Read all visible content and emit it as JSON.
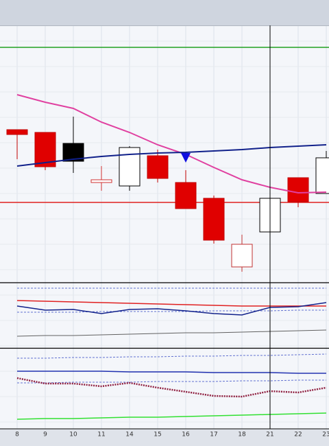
{
  "chart_data": {
    "type": "candlestick",
    "categories": [
      "8",
      "9",
      "10",
      "11",
      "14",
      "15",
      "16",
      "17",
      "18",
      "21",
      "22",
      "23"
    ],
    "crosshair_index": 9,
    "panels": [
      {
        "ylim": [
          0,
          373
        ],
        "candles": {
          "open": [
            221,
            217,
            201,
            144,
            139,
            183,
            144,
            121,
            21,
            72,
            151,
            128
          ],
          "high": [
            221,
            217,
            240,
            168,
            197,
            192,
            162,
            125,
            68,
            121,
            151,
            190
          ],
          "low": [
            178,
            162,
            158,
            132,
            132,
            144,
            106,
            55,
            14,
            72,
            108,
            128
          ],
          "close": [
            214,
            167,
            175,
            148,
            195,
            150,
            106,
            60,
            54,
            121,
            116,
            180
          ],
          "fill": [
            "#e00000",
            "#e00000",
            "#000000",
            "#ffffff",
            "#ffffff",
            "#e00000",
            "#e00000",
            "#e00000",
            "#ffffff",
            "#ffffff",
            "#e00000",
            "#ffffff"
          ],
          "stroke": [
            "#c00000",
            "#c00000",
            "#000000",
            "#d03030",
            "#000000",
            "#c00000",
            "#c00000",
            "#c00000",
            "#c03030",
            "#000000",
            "#c00000",
            "#000000"
          ]
        },
        "lines": [
          {
            "color": "#e040a0",
            "dash": "none",
            "width": 2,
            "values": [
              272,
              261,
              252,
              232,
              217,
              199,
              185,
              166,
              148,
              137,
              129,
              130
            ]
          },
          {
            "color": "#10208a",
            "dash": "none",
            "width": 2,
            "values": [
              168,
              173,
              178,
              182,
              185,
              187,
              188,
              190,
              192,
              195,
              197,
              199
            ]
          }
        ],
        "hlines": [
          {
            "value": 341,
            "color": "#20a020"
          },
          {
            "value": 115,
            "color": "#e02020"
          }
        ],
        "markers": {
          "color": "#1010e0",
          "values": [
            null,
            null,
            null,
            null,
            null,
            null,
            180,
            null,
            null,
            null,
            null,
            null
          ]
        }
      },
      {
        "ylim": [
          0,
          94
        ],
        "lines": [
          {
            "color": "#6070d0",
            "dash": "3,2",
            "width": 1,
            "values": [
              87,
              87,
              87,
              87,
              87,
              87,
              87,
              87,
              87,
              87,
              87,
              87
            ]
          },
          {
            "color": "#6070d0",
            "dash": "3,2",
            "width": 1,
            "values": [
              52,
              52,
              52,
              53,
              53,
              53,
              53,
              54,
              54,
              54,
              55,
              55
            ]
          },
          {
            "color": "#e02020",
            "dash": "none",
            "width": 1.5,
            "values": [
              69,
              68,
              67,
              66,
              65,
              64,
              63,
              62,
              61,
              61,
              61,
              61
            ]
          },
          {
            "color": "#10208a",
            "dash": "none",
            "width": 1.5,
            "values": [
              61,
              55,
              56,
              50,
              56,
              57,
              54,
              50,
              48,
              59,
              60,
              66
            ]
          },
          {
            "color": "#606060",
            "dash": "none",
            "width": 1,
            "values": [
              17,
              18,
              18,
              19,
              20,
              21,
              22,
              22,
              23,
              24,
              25,
              26
            ]
          }
        ]
      },
      {
        "ylim": [
          0,
          117
        ],
        "lines": [
          {
            "color": "#6070d0",
            "dash": "3,2",
            "width": 1,
            "values": [
              103,
              103,
              104,
              104,
              105,
              105,
              106,
              106,
              107,
              107,
              108,
              109
            ]
          },
          {
            "color": "#2030b0",
            "dash": "none",
            "width": 1.5,
            "values": [
              84,
              84,
              84,
              84,
              83,
              83,
              83,
              82,
              82,
              82,
              81,
              81
            ]
          },
          {
            "color": "#6070d0",
            "dash": "3,2",
            "width": 1,
            "values": [
              67,
              67,
              68,
              68,
              68,
              69,
              69,
              69,
              70,
              70,
              71,
              71
            ]
          },
          {
            "color": "#902040",
            "dash": "2,1.5",
            "width": 2.5,
            "values": [
              74,
              66,
              66,
              62,
              67,
              60,
              54,
              48,
              47,
              55,
              53,
              60
            ]
          },
          {
            "color": "#30e030",
            "dash": "none",
            "width": 1.5,
            "values": [
              14,
              15,
              15,
              16,
              17,
              17,
              18,
              19,
              20,
              21,
              22,
              23
            ]
          }
        ]
      }
    ]
  }
}
